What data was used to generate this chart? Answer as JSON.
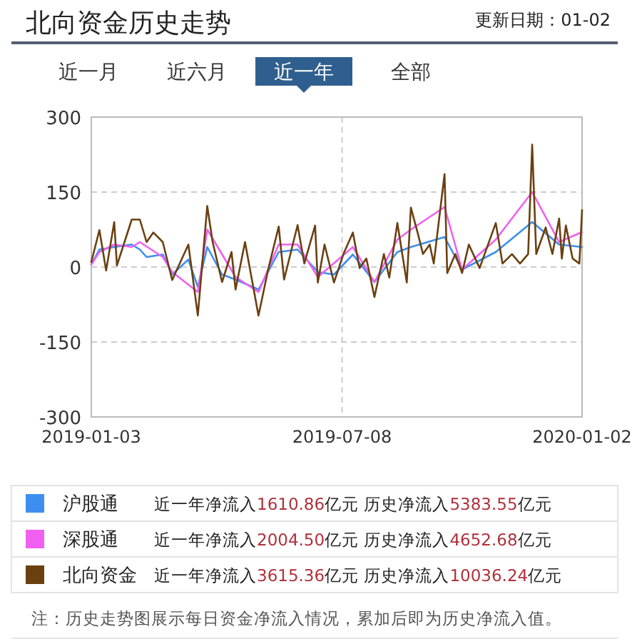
{
  "chart_data": {
    "type": "line",
    "title": "北向资金历史走势",
    "xlim": [
      "2019-01-03",
      "2020-01-02"
    ],
    "xticks": [
      "2019-01-03",
      "2019-07-08",
      "2020-01-02"
    ],
    "ylim": [
      -300,
      300
    ],
    "yticks": [
      -300,
      -150,
      0,
      150,
      300
    ],
    "grid": true,
    "legend": "bottom",
    "marker": "none",
    "series": [
      {
        "name": "沪股通",
        "color": "#3d8fef",
        "x": [
          "2019-01-03",
          "2019-01-09",
          "2019-01-20",
          "2019-02-02",
          "2019-02-08",
          "2019-02-13",
          "2019-02-25",
          "2019-03-04",
          "2019-03-16",
          "2019-03-23",
          "2019-03-30",
          "2019-04-10",
          "2019-04-20",
          "2019-05-07",
          "2019-05-22",
          "2019-06-05",
          "2019-06-20",
          "2019-07-02",
          "2019-07-16",
          "2019-08-01",
          "2019-08-18",
          "2019-08-28",
          "2019-09-22",
          "2019-10-05",
          "2019-10-30",
          "2019-11-26",
          "2019-12-16",
          "2020-01-02"
        ],
        "values": [
          5,
          35,
          40,
          45,
          35,
          20,
          25,
          -15,
          15,
          -40,
          40,
          -15,
          -25,
          -45,
          30,
          35,
          -10,
          -15,
          25,
          -30,
          30,
          40,
          60,
          -5,
          30,
          90,
          45,
          40
        ]
      },
      {
        "name": "深股通",
        "color": "#f060f0",
        "x": [
          "2019-01-03",
          "2019-01-09",
          "2019-01-20",
          "2019-02-02",
          "2019-02-08",
          "2019-02-25",
          "2019-03-04",
          "2019-03-23",
          "2019-03-30",
          "2019-04-20",
          "2019-05-07",
          "2019-05-22",
          "2019-06-05",
          "2019-06-20",
          "2019-07-16",
          "2019-08-01",
          "2019-08-18",
          "2019-08-28",
          "2019-09-22",
          "2019-10-05",
          "2019-10-30",
          "2019-11-26",
          "2019-12-16",
          "2020-01-02"
        ],
        "values": [
          5,
          30,
          45,
          40,
          50,
          20,
          -10,
          -50,
          75,
          -20,
          -50,
          45,
          45,
          -20,
          40,
          -30,
          55,
          75,
          120,
          -5,
          55,
          150,
          50,
          70
        ]
      },
      {
        "name": "北向资金",
        "color": "#6b4010",
        "x": [
          "2019-01-03",
          "2019-01-09",
          "2019-01-14",
          "2019-01-20",
          "2019-01-22",
          "2019-02-02",
          "2019-02-08",
          "2019-02-13",
          "2019-02-18",
          "2019-02-25",
          "2019-03-04",
          "2019-03-16",
          "2019-03-23",
          "2019-03-30",
          "2019-04-03",
          "2019-04-10",
          "2019-04-17",
          "2019-04-20",
          "2019-04-27",
          "2019-05-07",
          "2019-05-14",
          "2019-05-22",
          "2019-05-26",
          "2019-06-05",
          "2019-06-10",
          "2019-06-18",
          "2019-06-20",
          "2019-06-25",
          "2019-07-02",
          "2019-07-09",
          "2019-07-16",
          "2019-07-21",
          "2019-07-26",
          "2019-08-01",
          "2019-08-08",
          "2019-08-12",
          "2019-08-18",
          "2019-08-25",
          "2019-08-28",
          "2019-09-02",
          "2019-09-06",
          "2019-09-11",
          "2019-09-14",
          "2019-09-22",
          "2019-09-24",
          "2019-09-30",
          "2019-10-05",
          "2019-10-10",
          "2019-10-18",
          "2019-10-30",
          "2019-11-04",
          "2019-11-11",
          "2019-11-17",
          "2019-11-23",
          "2019-11-26",
          "2019-11-29",
          "2019-12-06",
          "2019-12-11",
          "2019-12-16",
          "2019-12-18",
          "2019-12-21",
          "2019-12-26",
          "2019-12-31",
          "2020-01-02"
        ],
        "values": [
          10,
          74,
          -7,
          90,
          3,
          95,
          95,
          50,
          69,
          50,
          -26,
          45,
          -97,
          122,
          50,
          -30,
          30,
          -45,
          50,
          -97,
          -7,
          81,
          -25,
          84,
          7,
          83,
          -31,
          45,
          -31,
          26,
          69,
          -2,
          17,
          -60,
          26,
          -21,
          88,
          -31,
          119,
          69,
          26,
          45,
          7,
          186,
          -12,
          26,
          -12,
          45,
          -2,
          88,
          7,
          26,
          7,
          26,
          245,
          26,
          79,
          26,
          97,
          17,
          83,
          17,
          7,
          114
        ]
      }
    ],
    "annotations": [
      "更新日期：01-02",
      "近一月",
      "近六月",
      "近一年",
      "全部",
      "近一年净流入1610.86亿元 历史净流入5383.55亿元",
      "近一年净流入2004.50亿元 历史净流入4652.68亿元",
      "近一年净流入3615.36亿元 历史净流入10036.24亿元",
      "注：历史走势图展示每日资金净流入情况，累加后即为历史净流入值。"
    ]
  }
}
